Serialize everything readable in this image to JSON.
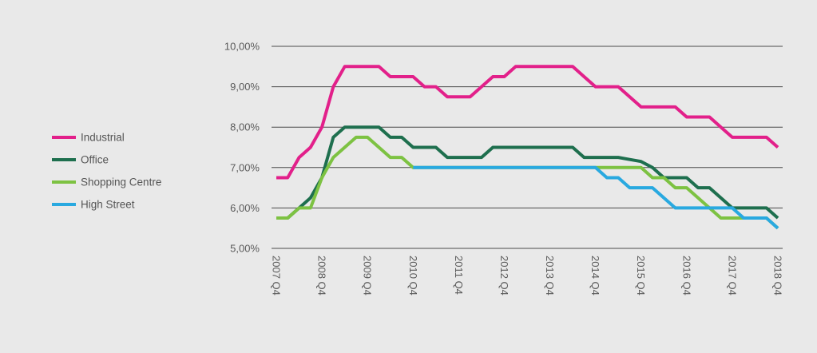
{
  "chart_data": {
    "type": "line",
    "title": "",
    "xlabel": "",
    "ylabel": "",
    "ylim": [
      5.0,
      10.0
    ],
    "y_ticks": [
      "5,00%",
      "6,00%",
      "7,00%",
      "8,00%",
      "9,00%",
      "10,00%"
    ],
    "y_tick_values": [
      5,
      6,
      7,
      8,
      9,
      10
    ],
    "x_tick_labels": [
      "2007 Q4",
      "2008 Q4",
      "2009 Q4",
      "2010 Q4",
      "2011 Q4",
      "2012 Q4",
      "2013 Q4",
      "2014 Q4",
      "2015 Q4",
      "2016 Q4",
      "2017 Q4",
      "2018 Q4"
    ],
    "x_tick_index": [
      0,
      4,
      8,
      12,
      16,
      20,
      24,
      28,
      32,
      36,
      40,
      44
    ],
    "x": [
      "2007 Q4",
      "2008 Q1",
      "2008 Q2",
      "2008 Q3",
      "2008 Q4",
      "2009 Q1",
      "2009 Q2",
      "2009 Q3",
      "2009 Q4",
      "2010 Q1",
      "2010 Q2",
      "2010 Q3",
      "2010 Q4",
      "2011 Q1",
      "2011 Q2",
      "2011 Q3",
      "2011 Q4",
      "2012 Q1",
      "2012 Q2",
      "2012 Q3",
      "2012 Q4",
      "2013 Q1",
      "2013 Q2",
      "2013 Q3",
      "2013 Q4",
      "2014 Q1",
      "2014 Q2",
      "2014 Q3",
      "2014 Q4",
      "2015 Q1",
      "2015 Q2",
      "2015 Q3",
      "2015 Q4",
      "2016 Q1",
      "2016 Q2",
      "2016 Q3",
      "2016 Q4",
      "2017 Q1",
      "2017 Q2",
      "2017 Q3",
      "2017 Q4",
      "2018 Q1",
      "2018 Q2",
      "2018 Q3",
      "2018 Q4"
    ],
    "legend_position": "left",
    "grid": true,
    "series": [
      {
        "name": "Industrial",
        "color": "#e2208a",
        "values": [
          6.75,
          6.75,
          7.25,
          7.5,
          8.0,
          9.0,
          9.5,
          9.5,
          9.5,
          9.5,
          9.25,
          9.25,
          9.25,
          9.0,
          9.0,
          8.75,
          8.75,
          8.75,
          9.0,
          9.25,
          9.25,
          9.5,
          9.5,
          9.5,
          9.5,
          9.5,
          9.5,
          9.25,
          9.0,
          9.0,
          9.0,
          8.75,
          8.5,
          8.5,
          8.5,
          8.5,
          8.25,
          8.25,
          8.25,
          8.0,
          7.75,
          7.75,
          7.75,
          7.75,
          7.5
        ]
      },
      {
        "name": "Office",
        "color": "#1e6f4e",
        "values": [
          5.75,
          5.75,
          6.0,
          6.25,
          6.75,
          7.75,
          8.0,
          8.0,
          8.0,
          8.0,
          7.75,
          7.75,
          7.5,
          7.5,
          7.5,
          7.25,
          7.25,
          7.25,
          7.25,
          7.5,
          7.5,
          7.5,
          7.5,
          7.5,
          7.5,
          7.5,
          7.5,
          7.25,
          7.25,
          7.25,
          7.25,
          7.2,
          7.15,
          7.0,
          6.75,
          6.75,
          6.75,
          6.5,
          6.5,
          6.25,
          6.0,
          6.0,
          6.0,
          6.0,
          5.75
        ]
      },
      {
        "name": "Shopping Centre",
        "color": "#7dc242",
        "values": [
          5.75,
          5.75,
          6.0,
          6.0,
          6.75,
          7.25,
          7.5,
          7.75,
          7.75,
          7.5,
          7.25,
          7.25,
          7.0,
          7.0,
          7.0,
          7.0,
          7.0,
          7.0,
          7.0,
          7.0,
          7.0,
          7.0,
          7.0,
          7.0,
          7.0,
          7.0,
          7.0,
          7.0,
          7.0,
          7.0,
          7.0,
          7.0,
          7.0,
          6.75,
          6.75,
          6.5,
          6.5,
          6.25,
          6.0,
          5.75,
          5.75,
          5.75,
          5.75,
          5.75,
          5.5
        ]
      },
      {
        "name": "High Street",
        "color": "#29a9e0",
        "values": [
          null,
          null,
          null,
          null,
          null,
          null,
          null,
          null,
          null,
          null,
          null,
          null,
          7.0,
          7.0,
          7.0,
          7.0,
          7.0,
          7.0,
          7.0,
          7.0,
          7.0,
          7.0,
          7.0,
          7.0,
          7.0,
          7.0,
          7.0,
          7.0,
          7.0,
          6.75,
          6.75,
          6.5,
          6.5,
          6.5,
          6.25,
          6.0,
          6.0,
          6.0,
          6.0,
          6.0,
          6.0,
          5.75,
          5.75,
          5.75,
          5.5
        ]
      }
    ]
  }
}
